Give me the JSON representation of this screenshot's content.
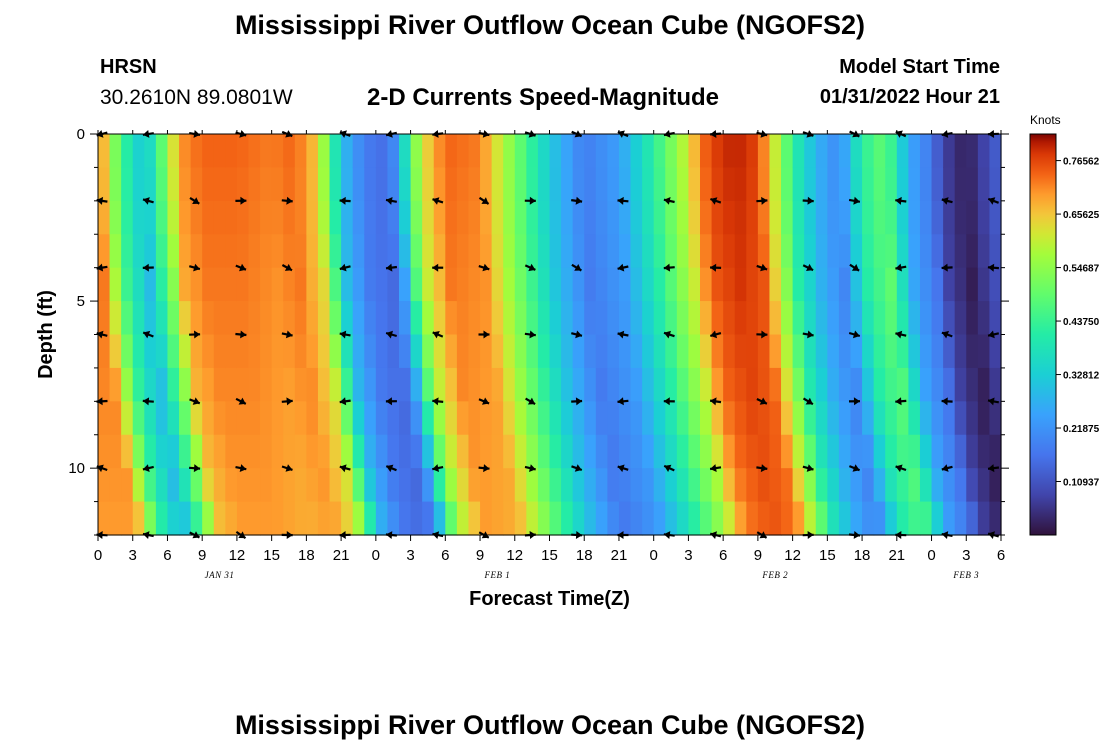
{
  "header": {
    "title": "Mississippi River Outflow Ocean Cube (NGOFS2)",
    "station_name": "HRSN",
    "station_coords": "30.2610N  89.0801W",
    "plot_subtitle": "2-D Currents Speed-Magnitude",
    "model_start_label": "Model Start Time",
    "model_start_value": "01/31/2022 Hour 21"
  },
  "footer": {
    "title": "Mississippi River Outflow Ocean Cube (NGOFS2)"
  },
  "chart_data": {
    "type": "heatmap",
    "xlabel": "Forecast Time(Z)",
    "ylabel": "Depth (ft)",
    "x_range_hours": [
      0,
      78
    ],
    "ylim": [
      0,
      12
    ],
    "y_ticks": [
      "0",
      "5",
      "10"
    ],
    "x_tick_labels": [
      "0",
      "3",
      "6",
      "9",
      "12",
      "15",
      "18",
      "21",
      "0",
      "3",
      "6",
      "9",
      "12",
      "15",
      "18",
      "21",
      "0",
      "3",
      "6",
      "9",
      "12",
      "15",
      "18",
      "21",
      "0",
      "3",
      "6"
    ],
    "date_labels": [
      {
        "hour": 10.5,
        "label": "JAN 31"
      },
      {
        "hour": 34.5,
        "label": "FEB 1"
      },
      {
        "hour": 58.5,
        "label": "FEB 2"
      },
      {
        "hour": 75,
        "label": "FEB 3"
      }
    ],
    "colorbar": {
      "unit": "Knots",
      "min": 0,
      "max": 0.82,
      "tick_labels": [
        "0.76562",
        "0.65625",
        "0.54687",
        "0.43750",
        "0.32812",
        "0.21875",
        "0.10937"
      ],
      "tick_values": [
        0.76562,
        0.65625,
        0.54687,
        0.4375,
        0.32812,
        0.21875,
        0.10937
      ]
    },
    "surface_speed_profile": {
      "hours": [
        0,
        2,
        4,
        6,
        7,
        9,
        12,
        15,
        17,
        19,
        21,
        23,
        25,
        26,
        27,
        28,
        30,
        33,
        36,
        39,
        42,
        45,
        48,
        51,
        52,
        53,
        55,
        57,
        59,
        60,
        62,
        64,
        66,
        68,
        69,
        70,
        72,
        73,
        75,
        76,
        78
      ],
      "speeds": [
        0.74,
        0.45,
        0.3,
        0.55,
        0.7,
        0.74,
        0.74,
        0.72,
        0.74,
        0.65,
        0.3,
        0.18,
        0.15,
        0.25,
        0.48,
        0.62,
        0.74,
        0.72,
        0.52,
        0.32,
        0.18,
        0.24,
        0.42,
        0.62,
        0.72,
        0.77,
        0.8,
        0.77,
        0.55,
        0.42,
        0.28,
        0.2,
        0.42,
        0.5,
        0.38,
        0.26,
        0.17,
        0.08,
        0.02,
        0.06,
        0.14
      ]
    }
  }
}
